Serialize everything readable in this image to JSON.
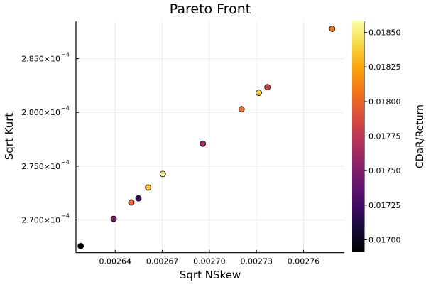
{
  "chart_data": {
    "type": "scatter",
    "title": "Pareto Front",
    "xlabel": "Sqrt NSkew",
    "ylabel": "Sqrt Kurt",
    "colorbar_label": "CDaR/Return",
    "colormap": "inferno",
    "grid": true,
    "legend": "none",
    "xlim": [
      0.002615,
      0.002786
    ],
    "ylim": [
      0.00026694,
      0.00028848
    ],
    "clim": [
      0.01691,
      0.01858
    ],
    "x_ticks": [
      0.00264,
      0.00267,
      0.0027,
      0.00273,
      0.00276
    ],
    "x_tick_labels": [
      "0.00264",
      "0.00267",
      "0.00270",
      "0.00273",
      "0.00276"
    ],
    "y_ticks": [
      0.00027,
      0.000275,
      0.00028,
      0.000285
    ],
    "y_tick_labels": [
      {
        "mant": "2.700",
        "exp": "−4"
      },
      {
        "mant": "2.750",
        "exp": "−4"
      },
      {
        "mant": "2.800",
        "exp": "−4"
      },
      {
        "mant": "2.850",
        "exp": "−4"
      }
    ],
    "y_tick_mult": "×10",
    "c_ticks": [
      0.017,
      0.01725,
      0.0175,
      0.01775,
      0.018,
      0.01825,
      0.0185
    ],
    "c_tick_labels": [
      "0.01700",
      "0.01725",
      "0.01750",
      "0.01775",
      "0.01800",
      "0.01825",
      "0.01850"
    ],
    "points": [
      {
        "x": 0.002618,
        "y": 0.00026756,
        "c": 0.01691
      },
      {
        "x": 0.002639,
        "y": 0.00027009,
        "c": 0.01745
      },
      {
        "x": 0.0026503,
        "y": 0.00027162,
        "c": 0.01797
      },
      {
        "x": 0.0026548,
        "y": 0.000272,
        "c": 0.01722
      },
      {
        "x": 0.002661,
        "y": 0.00027301,
        "c": 0.0183
      },
      {
        "x": 0.0026703,
        "y": 0.00027427,
        "c": 0.01855
      },
      {
        "x": 0.0026958,
        "y": 0.00027709,
        "c": 0.0176
      },
      {
        "x": 0.0027205,
        "y": 0.0002803,
        "c": 0.018
      },
      {
        "x": 0.0027315,
        "y": 0.00028183,
        "c": 0.01838
      },
      {
        "x": 0.002737,
        "y": 0.00028235,
        "c": 0.01783
      },
      {
        "x": 0.0027782,
        "y": 0.00028779,
        "c": 0.01805
      }
    ]
  }
}
